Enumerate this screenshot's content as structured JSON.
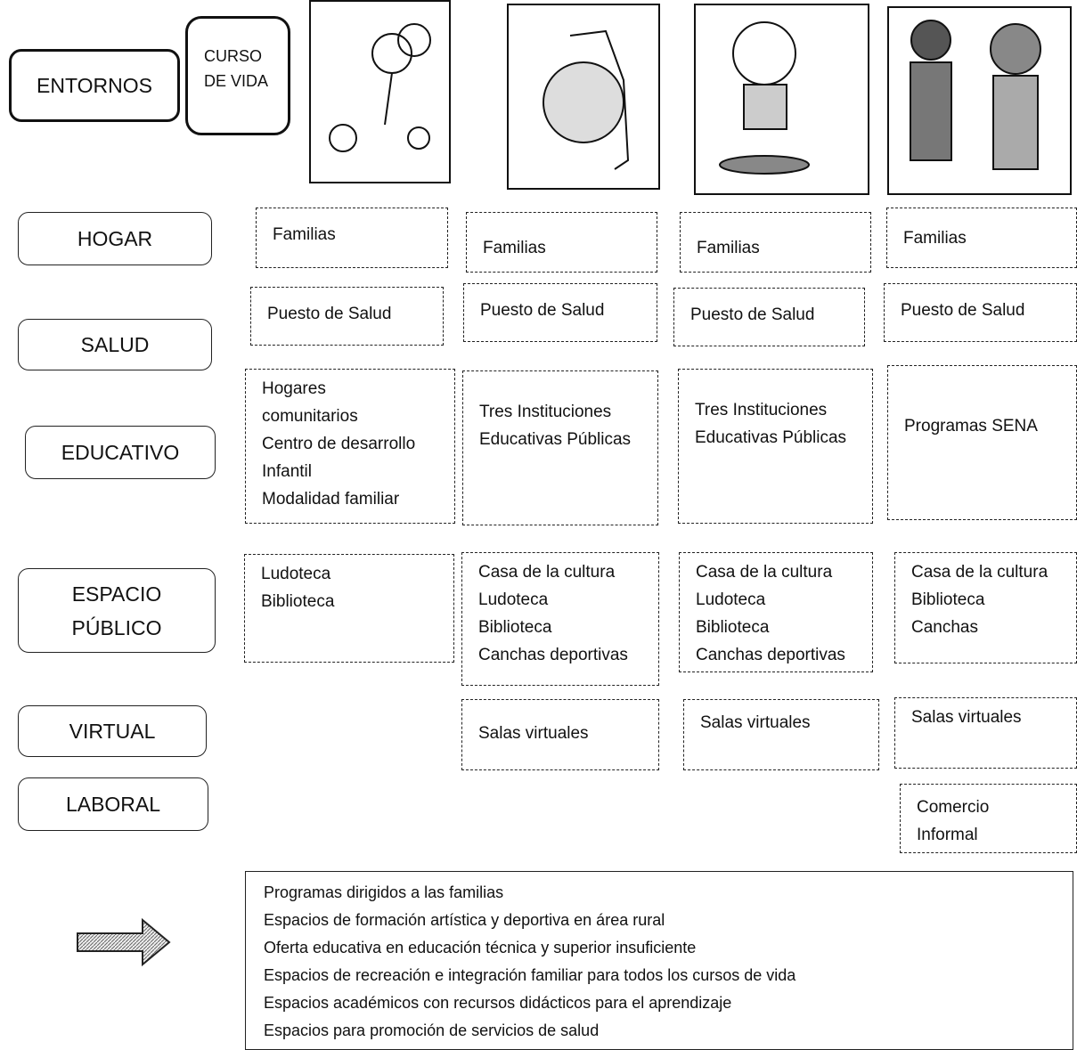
{
  "header": {
    "row_label": "ENTORNOS",
    "column_label": [
      "CURSO",
      "DE VIDA"
    ]
  },
  "rows": [
    {
      "label": [
        "HOGAR"
      ],
      "cells": [
        [
          "Familias"
        ],
        [
          "Familias"
        ],
        [
          "Familias"
        ],
        [
          "Familias"
        ]
      ]
    },
    {
      "label": [
        "SALUD"
      ],
      "cells": [
        [
          "Puesto de Salud"
        ],
        [
          "Puesto de Salud"
        ],
        [
          "Puesto de Salud"
        ],
        [
          "Puesto de Salud"
        ]
      ]
    },
    {
      "label": [
        "EDUCATIVO"
      ],
      "cells": [
        [
          "Hogares",
          "comunitarios",
          "Centro de desarrollo",
          "Infantil",
          "Modalidad familiar"
        ],
        [
          "Tres Instituciones",
          "Educativas Públicas"
        ],
        [
          "Tres Instituciones",
          "Educativas Públicas"
        ],
        [
          "Programas SENA"
        ]
      ]
    },
    {
      "label": [
        "ESPACIO",
        "PÚBLICO"
      ],
      "cells": [
        [
          "Ludoteca",
          "Biblioteca"
        ],
        [
          "Casa de la cultura",
          "Ludoteca",
          "Biblioteca",
          "Canchas deportivas"
        ],
        [
          "Casa de la cultura",
          "Ludoteca",
          "Biblioteca",
          "Canchas deportivas"
        ],
        [
          "Casa de la cultura",
          "Biblioteca",
          "Canchas"
        ]
      ]
    },
    {
      "label": [
        "VIRTUAL"
      ],
      "cells": [
        null,
        [
          "Salas virtuales"
        ],
        [
          "Salas virtuales"
        ],
        [
          "Salas virtuales"
        ]
      ]
    },
    {
      "label": [
        "LABORAL"
      ],
      "cells": [
        null,
        null,
        null,
        [
          "Comercio",
          "Informal"
        ]
      ]
    }
  ],
  "summary": [
    "Programas dirigidos a las familias",
    "Espacios  de formación artística y deportiva en área rural",
    "Oferta educativa en educación técnica y superior insuficiente",
    "Espacios de recreación e integración familiar para todos los cursos de vida",
    "Espacios académicos con recursos didácticos para el aprendizaje",
    "Espacios para promoción de servicios de salud"
  ]
}
